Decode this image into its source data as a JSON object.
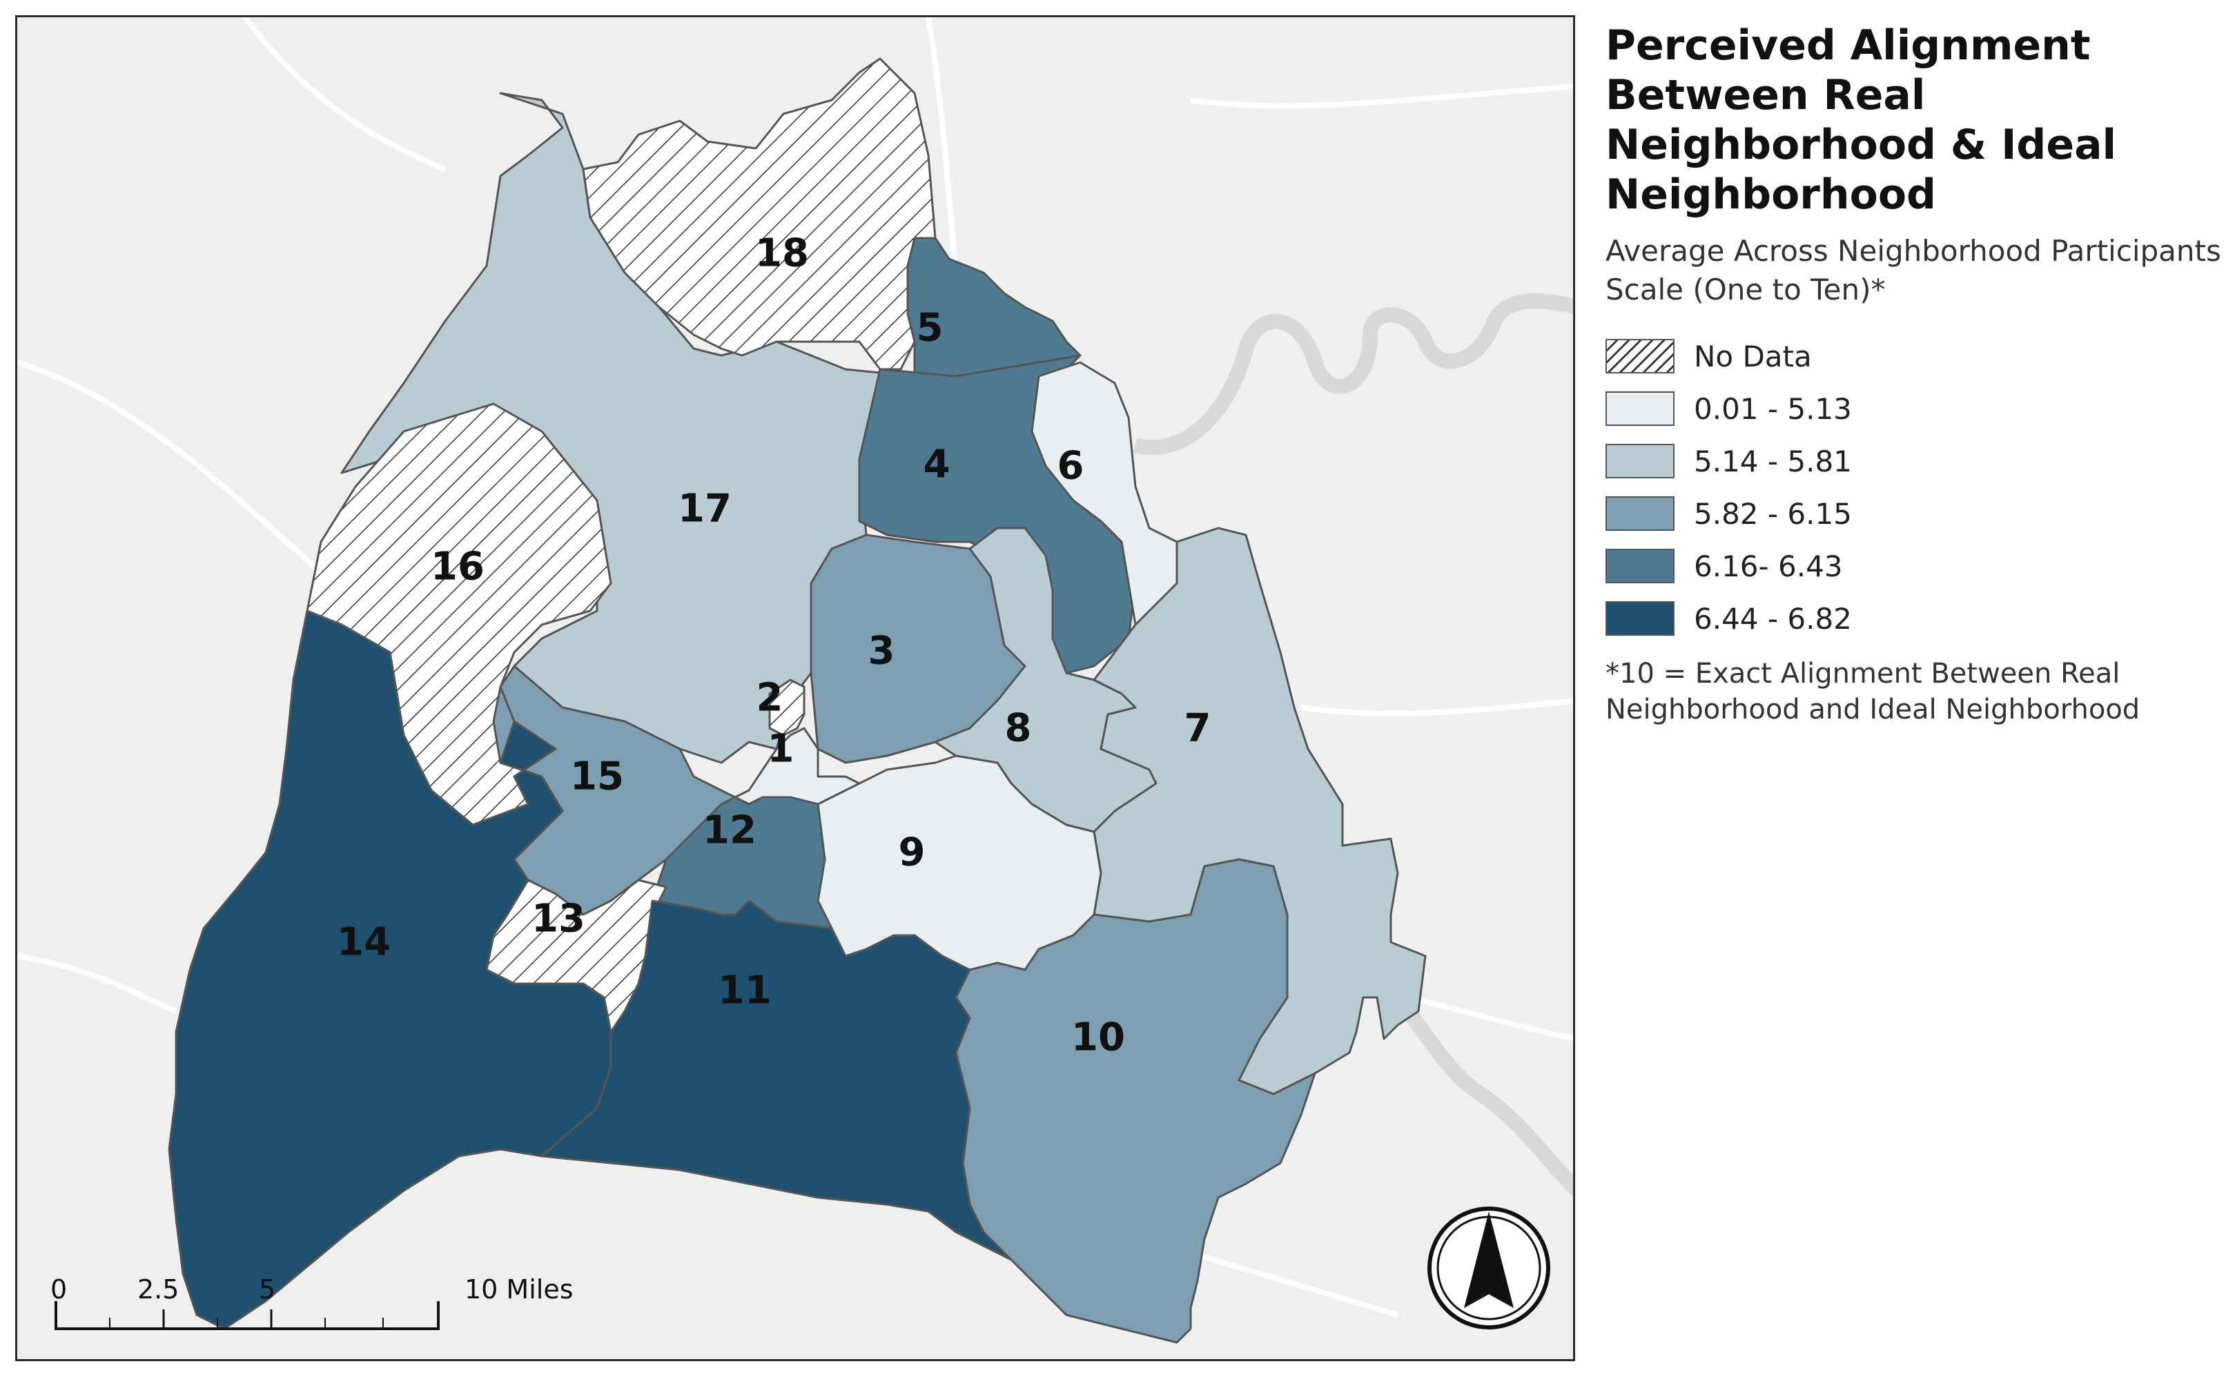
{
  "legend": {
    "title": "Perceived Alignment Between Real Neighborhood & Ideal Neighborhood",
    "subtitle_line1": "Average Across Neighborhood Participants",
    "subtitle_line2": "Scale (One to Ten)*",
    "items": [
      {
        "label": "No Data",
        "color": "hatch"
      },
      {
        "label": "0.01 - 5.13",
        "color": "#e8eef1"
      },
      {
        "label": "5.14 - 5.81",
        "color": "#b9cbd3"
      },
      {
        "label": "5.82 - 6.15",
        "color": "#7e9fb1"
      },
      {
        "label": "6.16- 6.43",
        "color": "#4f7a92"
      },
      {
        "label": "6.44 - 6.82",
        "color": "#1f5070"
      }
    ],
    "note_line1": "*10 = Exact Alignment Between Real",
    "note_line2": "Neighborhood and Ideal Neighborhood"
  },
  "neighborhoods": [
    {
      "id": "1",
      "label": "1",
      "class": "0.01 - 5.13"
    },
    {
      "id": "2",
      "label": "2",
      "class": "No Data"
    },
    {
      "id": "3",
      "label": "3",
      "class": "5.82 - 6.15"
    },
    {
      "id": "4",
      "label": "4",
      "class": "6.16- 6.43"
    },
    {
      "id": "5",
      "label": "5",
      "class": "6.16- 6.43"
    },
    {
      "id": "6",
      "label": "6",
      "class": "0.01 - 5.13"
    },
    {
      "id": "7",
      "label": "7",
      "class": "5.14 - 5.81"
    },
    {
      "id": "8",
      "label": "8",
      "class": "5.14 - 5.81"
    },
    {
      "id": "9",
      "label": "9",
      "class": "0.01 - 5.13"
    },
    {
      "id": "10",
      "label": "10",
      "class": "5.82 - 6.15"
    },
    {
      "id": "11",
      "label": "11",
      "class": "6.44 - 6.82"
    },
    {
      "id": "12",
      "label": "12",
      "class": "6.16- 6.43"
    },
    {
      "id": "13",
      "label": "13",
      "class": "No Data"
    },
    {
      "id": "14",
      "label": "14",
      "class": "6.44 - 6.82"
    },
    {
      "id": "15",
      "label": "15",
      "class": "5.82 - 6.15"
    },
    {
      "id": "16",
      "label": "16",
      "class": "No Data"
    },
    {
      "id": "17",
      "label": "17",
      "class": "5.14 - 5.81"
    },
    {
      "id": "18",
      "label": "18",
      "class": "No Data"
    }
  ],
  "scale_bar": {
    "ticks": [
      "0",
      "2.5",
      "5",
      "10 Miles"
    ]
  },
  "north_arrow": {
    "icon": "north-arrow-icon"
  }
}
